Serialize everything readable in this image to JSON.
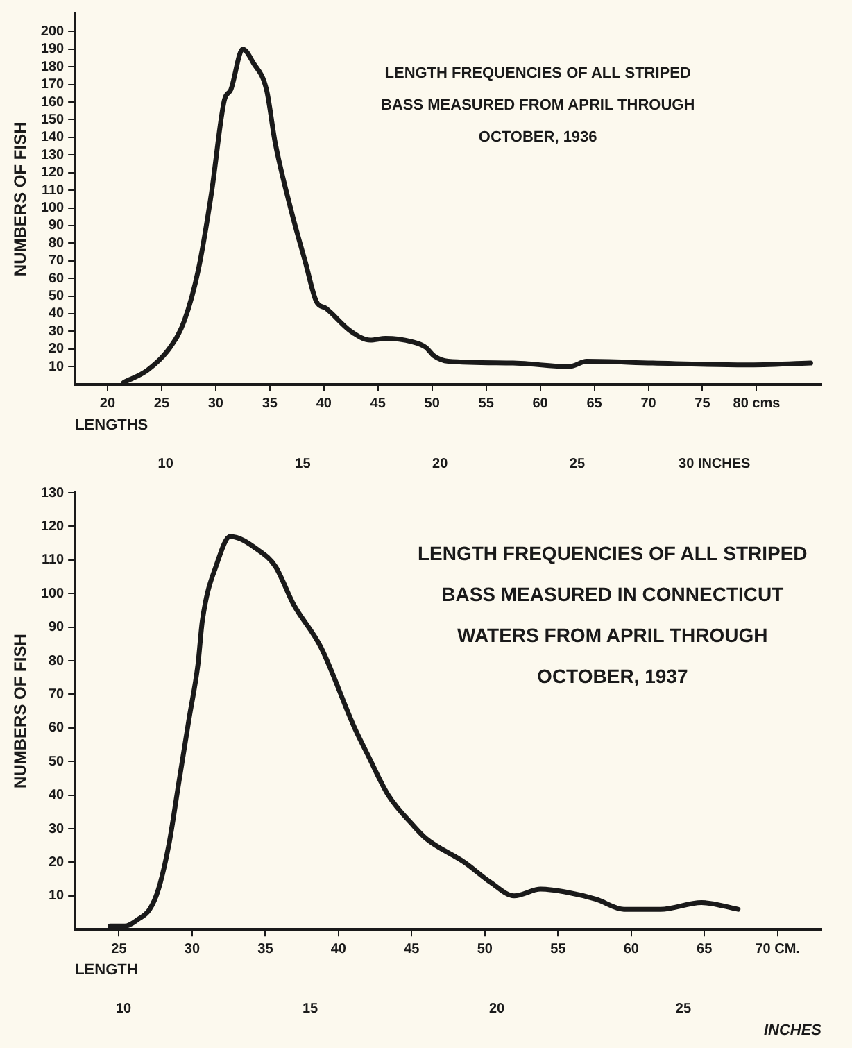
{
  "chart_data": [
    {
      "type": "line",
      "title": "LENGTH FREQUENCIES OF ALL STRIPED BASS MEASURED FROM APRIL THROUGH OCTOBER, 1936",
      "xlabel": "LENGTHS",
      "ylabel": "NUMBERS OF FISH",
      "marker": "none",
      "grid": false,
      "x": [
        21.5,
        23.7,
        25.8,
        27.1,
        28.4,
        29.6,
        30.8,
        31.4,
        32.5,
        33.5,
        34.7,
        35.5,
        37.0,
        38.3,
        39.3,
        40.2,
        42.5,
        44.3,
        45.7,
        48.2,
        49.4,
        50.2,
        51.5,
        57.5,
        62.7,
        64.3,
        70.4,
        79.0,
        85.0
      ],
      "series": [
        {
          "color": "#1a1a1a",
          "values": [
            1,
            8,
            21,
            36,
            65,
            108,
            161,
            167,
            190,
            182,
            167,
            137,
            98,
            69,
            47,
            43,
            30,
            25,
            26,
            24,
            21,
            16,
            13,
            12,
            10,
            13,
            12,
            11,
            12
          ]
        }
      ],
      "xlim": [
        17,
        86
      ],
      "xticks": [
        20,
        25,
        30,
        35,
        40,
        45,
        50,
        55,
        60,
        65,
        70,
        75,
        {
          "value": 80,
          "label": "80 cms"
        }
      ],
      "x2lim": [
        6.7,
        33.9
      ],
      "x2ticks": [
        10,
        15,
        20,
        25,
        {
          "value": 30,
          "label": "30 INCHES"
        }
      ],
      "ylim": [
        0,
        210
      ],
      "yticks": [
        10,
        20,
        30,
        40,
        50,
        60,
        70,
        80,
        90,
        100,
        110,
        120,
        130,
        140,
        150,
        160,
        170,
        180,
        190,
        200
      ]
    },
    {
      "type": "line",
      "title": "LENGTH FREQUENCIES OF ALL STRIPED BASS MEASURED IN CONNECTICUT WATERS FROM APRIL THROUGH OCTOBER, 1937",
      "xlabel": "LENGTH",
      "ylabel": "NUMBERS OF FISH",
      "x2label": "INCHES",
      "marker": "none",
      "grid": false,
      "x": [
        24.4,
        25.4,
        26.3,
        27.1,
        27.7,
        28.4,
        29.1,
        29.8,
        30.4,
        30.7,
        31.7,
        32.6,
        34.5,
        35.7,
        36.9,
        38.8,
        41.1,
        42.0,
        43.4,
        45.1,
        46.0,
        48.6,
        50.4,
        52.0,
        53.8,
        55.7,
        57.6,
        59.5,
        62.0,
        64.8,
        67.3
      ],
      "series": [
        {
          "color": "#1a1a1a",
          "values": [
            1,
            1,
            3,
            6,
            12,
            25,
            44,
            63,
            79,
            92,
            109,
            117,
            113,
            108,
            97,
            84,
            60,
            52,
            40,
            31,
            27,
            20,
            14,
            10,
            12,
            11,
            9,
            6,
            6,
            8,
            6
          ]
        }
      ],
      "xlim": [
        22,
        73
      ],
      "xticks": [
        25,
        30,
        35,
        40,
        45,
        50,
        55,
        60,
        65,
        {
          "value": 70,
          "label": "70 CM."
        }
      ],
      "x2lim": [
        8.7,
        28.7
      ],
      "x2ticks": [
        10,
        15,
        20,
        25
      ],
      "ylim": [
        0,
        130
      ],
      "yticks": [
        10,
        20,
        30,
        40,
        50,
        60,
        70,
        80,
        90,
        100,
        110,
        120,
        130
      ]
    }
  ]
}
